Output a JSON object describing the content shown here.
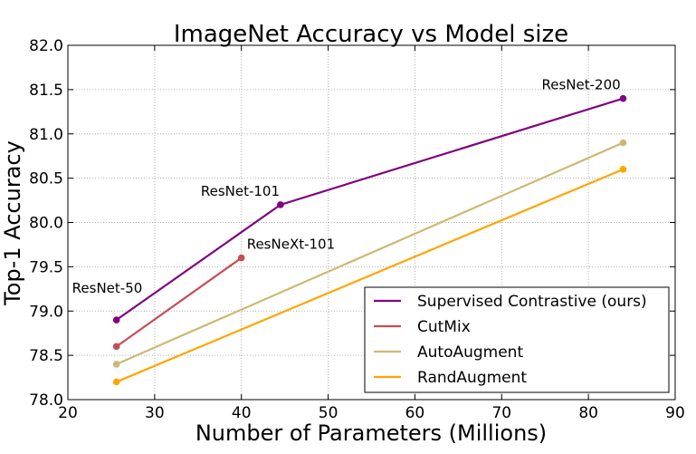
{
  "chart_data": {
    "type": "line",
    "title": "ImageNet Accuracy vs Model size",
    "xlabel": "Number of Parameters (Millions)",
    "ylabel": "Top-1 Accuracy",
    "xlim": [
      20,
      90
    ],
    "ylim": [
      78.0,
      82.0
    ],
    "xticks": [
      "20",
      "30",
      "40",
      "50",
      "60",
      "70",
      "80",
      "90"
    ],
    "xtick_values": [
      20,
      30,
      40,
      50,
      60,
      70,
      80,
      90
    ],
    "yticks": [
      "78.0",
      "78.5",
      "79.0",
      "79.5",
      "80.0",
      "80.5",
      "81.0",
      "81.5",
      "82.0"
    ],
    "ytick_values": [
      78.0,
      78.5,
      79.0,
      79.5,
      80.0,
      80.5,
      81.0,
      81.5,
      82.0
    ],
    "grid": true,
    "legend_position": "bottom-right",
    "series": [
      {
        "name": "Supervised Contrastive (ours)",
        "color": "#800080",
        "x": [
          25.6,
          44.5,
          84
        ],
        "y": [
          78.9,
          80.2,
          81.4
        ]
      },
      {
        "name": "CutMix",
        "color": "#c44e52",
        "x": [
          25.6,
          40
        ],
        "y": [
          78.6,
          79.6
        ]
      },
      {
        "name": "AutoAugment",
        "color": "#ccb974",
        "x": [
          25.6,
          84
        ],
        "y": [
          78.4,
          80.9
        ]
      },
      {
        "name": "RandAugment",
        "color": "#ffa500",
        "x": [
          25.6,
          84
        ],
        "y": [
          78.2,
          80.6
        ]
      }
    ],
    "annotations": [
      {
        "text": "ResNet-50",
        "x": 25.6,
        "y": 78.9
      },
      {
        "text": "ResNet-101",
        "x": 44.5,
        "y": 80.2
      },
      {
        "text": "ResNeXt-101",
        "x": 40,
        "y": 79.6
      },
      {
        "text": "ResNet-200",
        "x": 84,
        "y": 81.4
      }
    ]
  }
}
